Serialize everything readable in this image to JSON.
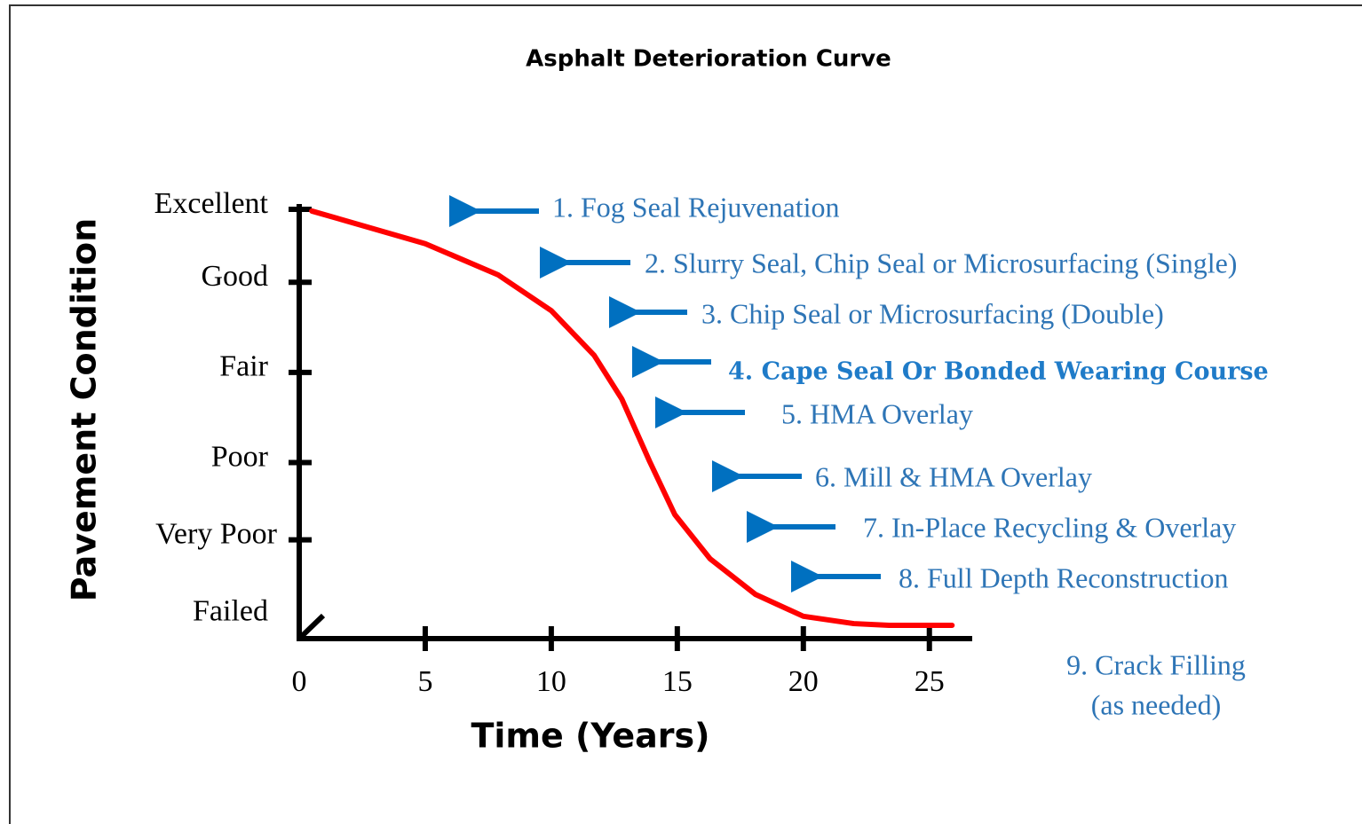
{
  "chart_data": {
    "type": "line",
    "title": "Asphalt Deterioration Curve",
    "x_label": "Time (Years)",
    "y_label": "Pavement Condition",
    "x": [
      0.5,
      5,
      7.9,
      10,
      11.7,
      12.8,
      13.9,
      14.9,
      16.3,
      18.1,
      20,
      22,
      23.4,
      25.9
    ],
    "values": [
      99.6,
      92,
      84.7,
      76.4,
      66,
      55.8,
      41.3,
      28.9,
      18.6,
      10.3,
      5.2,
      3.5,
      3.1,
      3.1
    ],
    "color": "#ff0000",
    "xlim": [
      0,
      26.7
    ],
    "xticks": [
      0,
      5,
      10,
      15,
      20,
      25
    ],
    "ylim": [
      0,
      100
    ],
    "yticks": [
      {
        "value": 100,
        "label": "Excellent"
      },
      {
        "value": 83,
        "label": "Good"
      },
      {
        "value": 62,
        "label": "Fair"
      },
      {
        "value": 41,
        "label": "Poor"
      },
      {
        "value": 23,
        "label": "Very Poor"
      },
      {
        "value": 5,
        "label": "Failed"
      }
    ],
    "annotations": [
      "1.  Fog Seal Rejuvenation",
      "2. Slurry Seal, Chip Seal or Microsurfacing (Single)",
      "3. Chip Seal or Microsurfacing (Double)",
      "4.  Cape Seal Or Bonded Wearing Course",
      "5. HMA Overlay",
      "6. Mill & HMA Overlay",
      "7. In-Place Recycling & Overlay",
      "8. Full Depth Reconstruction"
    ],
    "note": [
      "9. Crack Filling",
      "(as needed)"
    ]
  }
}
